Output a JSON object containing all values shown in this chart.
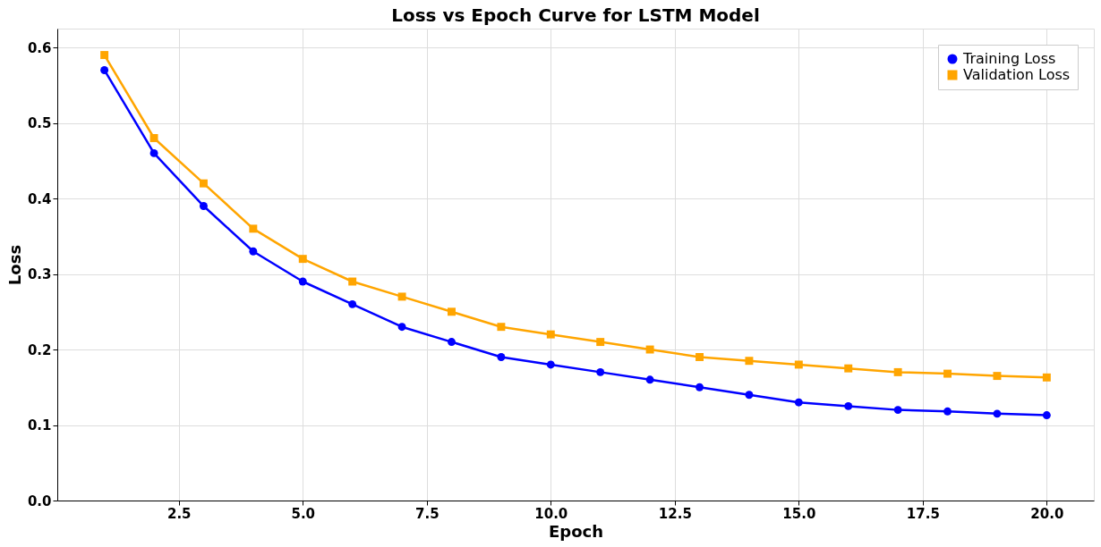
{
  "chart_data": {
    "type": "line",
    "title": "Loss vs Epoch Curve for LSTM Model",
    "xlabel": "Epoch",
    "ylabel": "Loss",
    "x": [
      1,
      2,
      3,
      4,
      5,
      6,
      7,
      8,
      9,
      10,
      11,
      12,
      13,
      14,
      15,
      16,
      17,
      18,
      19,
      20
    ],
    "series": [
      {
        "name": "Training Loss",
        "color": "#0000ff",
        "marker": "circle",
        "values": [
          0.57,
          0.46,
          0.39,
          0.33,
          0.29,
          0.26,
          0.23,
          0.21,
          0.19,
          0.18,
          0.17,
          0.16,
          0.15,
          0.14,
          0.13,
          0.125,
          0.12,
          0.118,
          0.115,
          0.113
        ]
      },
      {
        "name": "Validation Loss",
        "color": "#ffa500",
        "marker": "square",
        "values": [
          0.59,
          0.48,
          0.42,
          0.36,
          0.32,
          0.29,
          0.27,
          0.25,
          0.23,
          0.22,
          0.21,
          0.2,
          0.19,
          0.185,
          0.18,
          0.175,
          0.17,
          0.168,
          0.165,
          0.163
        ]
      }
    ],
    "xlim": [
      0.05,
      20.95
    ],
    "xticks": [
      {
        "value": 2.5,
        "label": "2.5"
      },
      {
        "value": 5,
        "label": "5.0"
      },
      {
        "value": 7.5,
        "label": "7.5"
      },
      {
        "value": 10,
        "label": "10.0"
      },
      {
        "value": 12.5,
        "label": "12.5"
      },
      {
        "value": 15,
        "label": "15.0"
      },
      {
        "value": 17.5,
        "label": "17.5"
      },
      {
        "value": 20,
        "label": "20.0"
      }
    ],
    "ylim": [
      0,
      0.625
    ],
    "yticks": [
      {
        "value": 0,
        "label": "0.0"
      },
      {
        "value": 0.1,
        "label": "0.1"
      },
      {
        "value": 0.2,
        "label": "0.2"
      },
      {
        "value": 0.3,
        "label": "0.3"
      },
      {
        "value": 0.4,
        "label": "0.4"
      },
      {
        "value": 0.5,
        "label": "0.5"
      },
      {
        "value": 0.6,
        "label": "0.6"
      }
    ],
    "grid": true,
    "legend": "top right",
    "line_style": "solid"
  }
}
